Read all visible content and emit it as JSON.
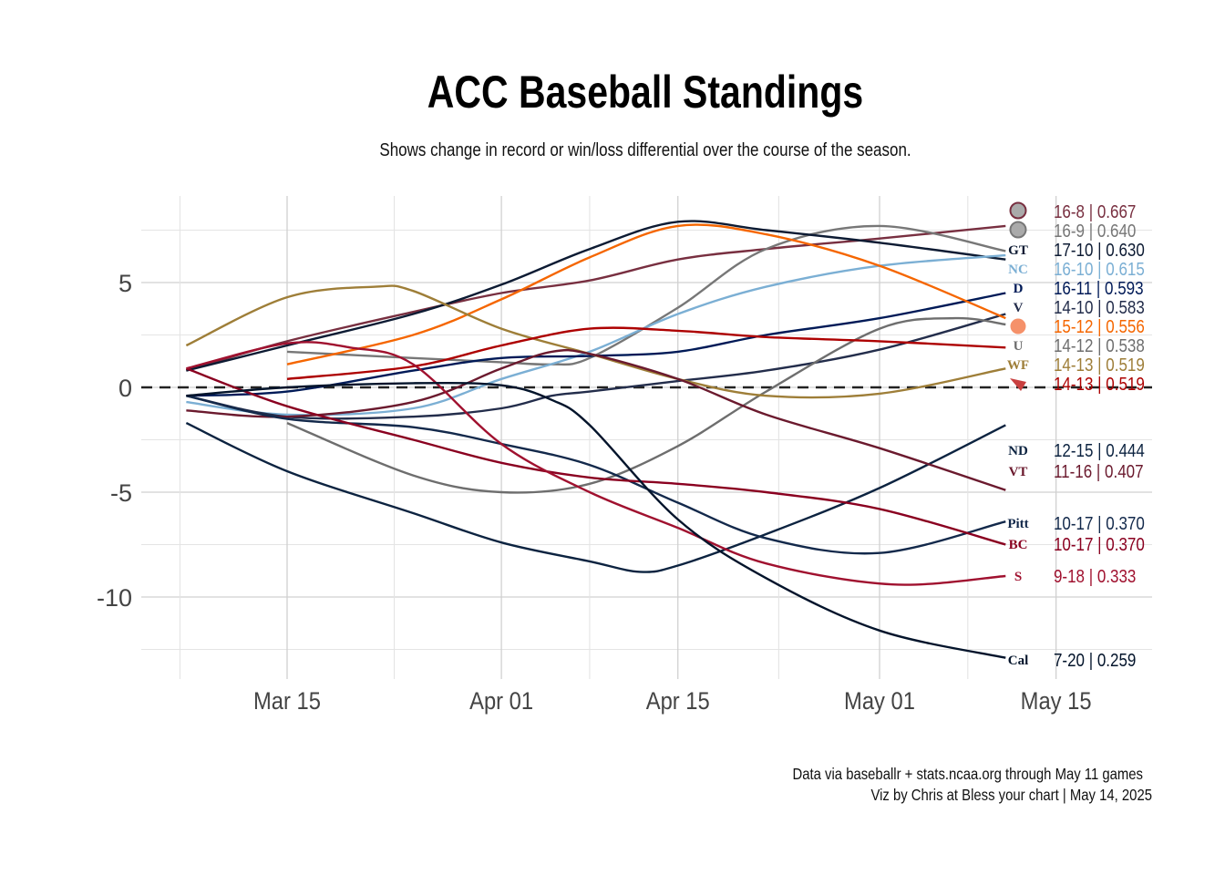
{
  "chart_data": {
    "type": "line",
    "title": "ACC Baseball Standings",
    "subtitle": "Shows change in record or win/loss differential over the course of the season.",
    "caption": [
      "Data via baseballr + stats.ncaa.org through May 11 games",
      "Viz by Chris at Bless your chart | May 14, 2025"
    ],
    "xlabel": "",
    "ylabel": "",
    "x_ticks": [
      "Mar 15",
      "Apr 01",
      "Apr 15",
      "May 01",
      "May 15"
    ],
    "x_tick_dates": [
      "2025-03-15",
      "2025-04-01",
      "2025-04-15",
      "2025-05-01",
      "2025-05-15"
    ],
    "y_ticks": [
      5,
      0,
      -5,
      -10
    ],
    "xlim": [
      "2025-03-03",
      "2025-05-19"
    ],
    "ylim": [
      -14,
      9.3
    ],
    "grid": true,
    "reference_line": {
      "y": 0,
      "style": "dashed"
    },
    "legend": "none (end labels with team logos)",
    "series": [
      {
        "label": "16-8 | 0.667",
        "logo": "fsu-logo",
        "color": "#782f40",
        "points": [
          [
            "2025-03-07",
            0.8
          ],
          [
            "2025-03-15",
            2.2
          ],
          [
            "2025-03-25",
            3.6
          ],
          [
            "2025-04-01",
            4.5
          ],
          [
            "2025-04-08",
            5.1
          ],
          [
            "2025-04-15",
            6.1
          ],
          [
            "2025-04-22",
            6.6
          ],
          [
            "2025-05-01",
            7.1
          ],
          [
            "2025-05-11",
            7.7
          ]
        ]
      },
      {
        "label": "16-9 | 0.640",
        "logo": "team-logo",
        "color": "#777777",
        "points": [
          [
            "2025-03-15",
            1.7
          ],
          [
            "2025-03-25",
            1.4
          ],
          [
            "2025-04-01",
            1.2
          ],
          [
            "2025-04-05",
            1.1
          ],
          [
            "2025-04-08",
            1.4
          ],
          [
            "2025-04-15",
            3.8
          ],
          [
            "2025-04-22",
            6.6
          ],
          [
            "2025-05-01",
            7.7
          ],
          [
            "2025-05-11",
            6.5
          ]
        ]
      },
      {
        "label": "17-10 | 0.630",
        "logo": "georgia-tech-logo",
        "color": "#0d1b33",
        "points": [
          [
            "2025-03-07",
            0.8
          ],
          [
            "2025-03-15",
            2.0
          ],
          [
            "2025-03-25",
            3.5
          ],
          [
            "2025-04-01",
            4.9
          ],
          [
            "2025-04-08",
            6.6
          ],
          [
            "2025-04-15",
            7.9
          ],
          [
            "2025-04-22",
            7.5
          ],
          [
            "2025-05-01",
            6.9
          ],
          [
            "2025-05-11",
            6.1
          ]
        ]
      },
      {
        "label": "16-10 | 0.615",
        "logo": "unc-logo",
        "color": "#7bafd4",
        "points": [
          [
            "2025-03-07",
            -0.7
          ],
          [
            "2025-03-15",
            -1.3
          ],
          [
            "2025-03-25",
            -1.0
          ],
          [
            "2025-04-01",
            0.4
          ],
          [
            "2025-04-08",
            1.7
          ],
          [
            "2025-04-15",
            3.5
          ],
          [
            "2025-04-22",
            4.8
          ],
          [
            "2025-05-01",
            5.8
          ],
          [
            "2025-05-11",
            6.3
          ]
        ]
      },
      {
        "label": "16-11 | 0.593",
        "logo": "duke-logo",
        "color": "#001a57",
        "points": [
          [
            "2025-03-07",
            -0.4
          ],
          [
            "2025-03-15",
            -0.2
          ],
          [
            "2025-03-25",
            0.8
          ],
          [
            "2025-04-01",
            1.4
          ],
          [
            "2025-04-08",
            1.5
          ],
          [
            "2025-04-15",
            1.7
          ],
          [
            "2025-04-22",
            2.5
          ],
          [
            "2025-05-01",
            3.3
          ],
          [
            "2025-05-11",
            4.5
          ]
        ]
      },
      {
        "label": "14-10 | 0.583",
        "logo": "virginia-logo",
        "color": "#232d4b",
        "points": [
          [
            "2025-03-07",
            -0.4
          ],
          [
            "2025-03-15",
            -1.4
          ],
          [
            "2025-03-25",
            -1.4
          ],
          [
            "2025-04-01",
            -1.0
          ],
          [
            "2025-04-05",
            -0.4
          ],
          [
            "2025-04-08",
            -0.2
          ],
          [
            "2025-04-15",
            0.3
          ],
          [
            "2025-04-22",
            0.8
          ],
          [
            "2025-05-01",
            1.8
          ],
          [
            "2025-05-11",
            3.5
          ]
        ]
      },
      {
        "label": "15-12 | 0.556",
        "logo": "clemson-logo",
        "color": "#f56600",
        "points": [
          [
            "2025-03-15",
            1.1
          ],
          [
            "2025-03-25",
            2.5
          ],
          [
            "2025-04-01",
            4.2
          ],
          [
            "2025-04-08",
            6.2
          ],
          [
            "2025-04-15",
            7.7
          ],
          [
            "2025-04-22",
            7.3
          ],
          [
            "2025-05-01",
            5.8
          ],
          [
            "2025-05-11",
            3.3
          ]
        ]
      },
      {
        "label": "14-12 | 0.538",
        "logo": "miami-logo",
        "color": "#6e6e6e",
        "points": [
          [
            "2025-03-15",
            -1.7
          ],
          [
            "2025-03-25",
            -4.2
          ],
          [
            "2025-04-01",
            -5.0
          ],
          [
            "2025-04-08",
            -4.6
          ],
          [
            "2025-04-15",
            -2.8
          ],
          [
            "2025-04-22",
            -0.2
          ],
          [
            "2025-05-01",
            2.8
          ],
          [
            "2025-05-07",
            3.3
          ],
          [
            "2025-05-11",
            3.0
          ]
        ]
      },
      {
        "label": "14-13 | 0.519",
        "logo": "wake-forest-logo",
        "color": "#9e7e38",
        "points": [
          [
            "2025-03-07",
            2.0
          ],
          [
            "2025-03-15",
            4.3
          ],
          [
            "2025-03-22",
            4.8
          ],
          [
            "2025-03-25",
            4.6
          ],
          [
            "2025-04-01",
            2.8
          ],
          [
            "2025-04-08",
            1.6
          ],
          [
            "2025-04-15",
            0.4
          ],
          [
            "2025-04-22",
            -0.4
          ],
          [
            "2025-05-01",
            -0.3
          ],
          [
            "2025-05-11",
            0.9
          ]
        ]
      },
      {
        "label": "14-13 | 0.519",
        "logo": "louisville-logo",
        "color": "#ad0000",
        "points": [
          [
            "2025-03-15",
            0.4
          ],
          [
            "2025-03-25",
            1.0
          ],
          [
            "2025-04-01",
            2.0
          ],
          [
            "2025-04-08",
            2.8
          ],
          [
            "2025-04-15",
            2.7
          ],
          [
            "2025-04-22",
            2.4
          ],
          [
            "2025-05-01",
            2.2
          ],
          [
            "2025-05-11",
            1.9
          ]
        ]
      },
      {
        "label": "12-15 | 0.444",
        "logo": "notre-dame-logo",
        "color": "#0c2340",
        "points": [
          [
            "2025-03-07",
            -1.7
          ],
          [
            "2025-03-15",
            -4.0
          ],
          [
            "2025-03-25",
            -6.0
          ],
          [
            "2025-04-01",
            -7.4
          ],
          [
            "2025-04-08",
            -8.3
          ],
          [
            "2025-04-12",
            -8.8
          ],
          [
            "2025-04-15",
            -8.5
          ],
          [
            "2025-04-22",
            -7.0
          ],
          [
            "2025-05-01",
            -4.8
          ],
          [
            "2025-05-11",
            -1.8
          ]
        ]
      },
      {
        "label": "11-16 | 0.407",
        "logo": "virginia-tech-logo",
        "color": "#6b1a2e",
        "points": [
          [
            "2025-03-07",
            -1.1
          ],
          [
            "2025-03-15",
            -1.4
          ],
          [
            "2025-03-25",
            -0.7
          ],
          [
            "2025-04-01",
            0.9
          ],
          [
            "2025-04-05",
            1.7
          ],
          [
            "2025-04-08",
            1.6
          ],
          [
            "2025-04-15",
            0.4
          ],
          [
            "2025-04-22",
            -1.3
          ],
          [
            "2025-05-01",
            -2.9
          ],
          [
            "2025-05-11",
            -4.9
          ]
        ]
      },
      {
        "label": "10-17 | 0.370",
        "logo": "pitt-logo",
        "color": "#13294b",
        "points": [
          [
            "2025-03-07",
            -0.4
          ],
          [
            "2025-03-15",
            -1.5
          ],
          [
            "2025-03-25",
            -1.9
          ],
          [
            "2025-04-01",
            -2.7
          ],
          [
            "2025-04-08",
            -3.7
          ],
          [
            "2025-04-15",
            -5.5
          ],
          [
            "2025-04-22",
            -7.2
          ],
          [
            "2025-05-01",
            -7.9
          ],
          [
            "2025-05-11",
            -6.4
          ]
        ]
      },
      {
        "label": "10-17 | 0.370",
        "logo": "boston-college-logo",
        "color": "#8a0020",
        "points": [
          [
            "2025-03-07",
            0.9
          ],
          [
            "2025-03-15",
            -0.9
          ],
          [
            "2025-03-25",
            -2.5
          ],
          [
            "2025-04-01",
            -3.6
          ],
          [
            "2025-04-08",
            -4.3
          ],
          [
            "2025-04-15",
            -4.6
          ],
          [
            "2025-04-22",
            -5.0
          ],
          [
            "2025-05-01",
            -5.8
          ],
          [
            "2025-05-11",
            -7.5
          ]
        ]
      },
      {
        "label": "9-18 | 0.333",
        "logo": "stanford-logo",
        "color": "#a0112f",
        "points": [
          [
            "2025-03-07",
            0.9
          ],
          [
            "2025-03-15",
            2.1
          ],
          [
            "2025-03-20",
            1.9
          ],
          [
            "2025-03-25",
            1.1
          ],
          [
            "2025-04-01",
            -2.7
          ],
          [
            "2025-04-08",
            -5.0
          ],
          [
            "2025-04-15",
            -6.7
          ],
          [
            "2025-04-22",
            -8.4
          ],
          [
            "2025-05-02",
            -9.4
          ],
          [
            "2025-05-11",
            -9.0
          ]
        ]
      },
      {
        "label": "7-20 | 0.259",
        "logo": "cal-logo",
        "color": "#03142b",
        "points": [
          [
            "2025-03-07",
            -0.4
          ],
          [
            "2025-03-15",
            0.0
          ],
          [
            "2025-03-25",
            0.2
          ],
          [
            "2025-04-01",
            0.1
          ],
          [
            "2025-04-05",
            -0.6
          ],
          [
            "2025-04-08",
            -1.8
          ],
          [
            "2025-04-15",
            -6.3
          ],
          [
            "2025-04-22",
            -9.1
          ],
          [
            "2025-05-01",
            -11.6
          ],
          [
            "2025-05-11",
            -12.9
          ]
        ]
      }
    ],
    "label_colors": [
      "#782f40",
      "#777777",
      "#0d1b33",
      "#7bafd4",
      "#001a57",
      "#232d4b",
      "#f56600",
      "#6e6e6e",
      "#9e7e38",
      "#ad0000",
      "#0c2340",
      "#6b1a2e",
      "#13294b",
      "#8a0020",
      "#a0112f",
      "#03142b"
    ],
    "logo_text": [
      "",
      "",
      "GT",
      "NC",
      "D",
      "V",
      "",
      "U",
      "WF",
      "",
      "ND",
      "VT",
      "Pitt",
      "BC",
      "S",
      "Cal"
    ]
  }
}
